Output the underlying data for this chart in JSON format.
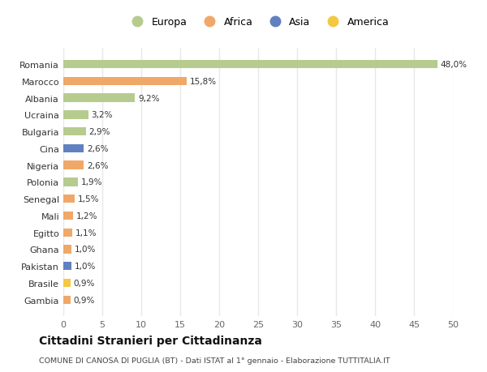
{
  "countries": [
    "Romania",
    "Marocco",
    "Albania",
    "Ucraina",
    "Bulgaria",
    "Cina",
    "Nigeria",
    "Polonia",
    "Senegal",
    "Mali",
    "Egitto",
    "Ghana",
    "Pakistan",
    "Brasile",
    "Gambia"
  ],
  "values": [
    48.0,
    15.8,
    9.2,
    3.2,
    2.9,
    2.6,
    2.6,
    1.9,
    1.5,
    1.2,
    1.1,
    1.0,
    1.0,
    0.9,
    0.9
  ],
  "labels": [
    "48,0%",
    "15,8%",
    "9,2%",
    "3,2%",
    "2,9%",
    "2,6%",
    "2,6%",
    "1,9%",
    "1,5%",
    "1,2%",
    "1,1%",
    "1,0%",
    "1,0%",
    "0,9%",
    "0,9%"
  ],
  "continents": [
    "Europa",
    "Africa",
    "Europa",
    "Europa",
    "Europa",
    "Asia",
    "Africa",
    "Europa",
    "Africa",
    "Africa",
    "Africa",
    "Africa",
    "Asia",
    "America",
    "Africa"
  ],
  "colors": {
    "Europa": "#b5cc8e",
    "Africa": "#f0a868",
    "Asia": "#6080bf",
    "America": "#f5c842"
  },
  "legend_order": [
    "Europa",
    "Africa",
    "Asia",
    "America"
  ],
  "xlim": [
    0,
    50
  ],
  "xticks": [
    0,
    5,
    10,
    15,
    20,
    25,
    30,
    35,
    40,
    45,
    50
  ],
  "title": "Cittadini Stranieri per Cittadinanza",
  "subtitle": "COMUNE DI CANOSA DI PUGLIA (BT) - Dati ISTAT al 1° gennaio - Elaborazione TUTTITALIA.IT",
  "plot_bg": "#ffffff",
  "fig_bg": "#ffffff",
  "grid_color": "#e8e8e8"
}
